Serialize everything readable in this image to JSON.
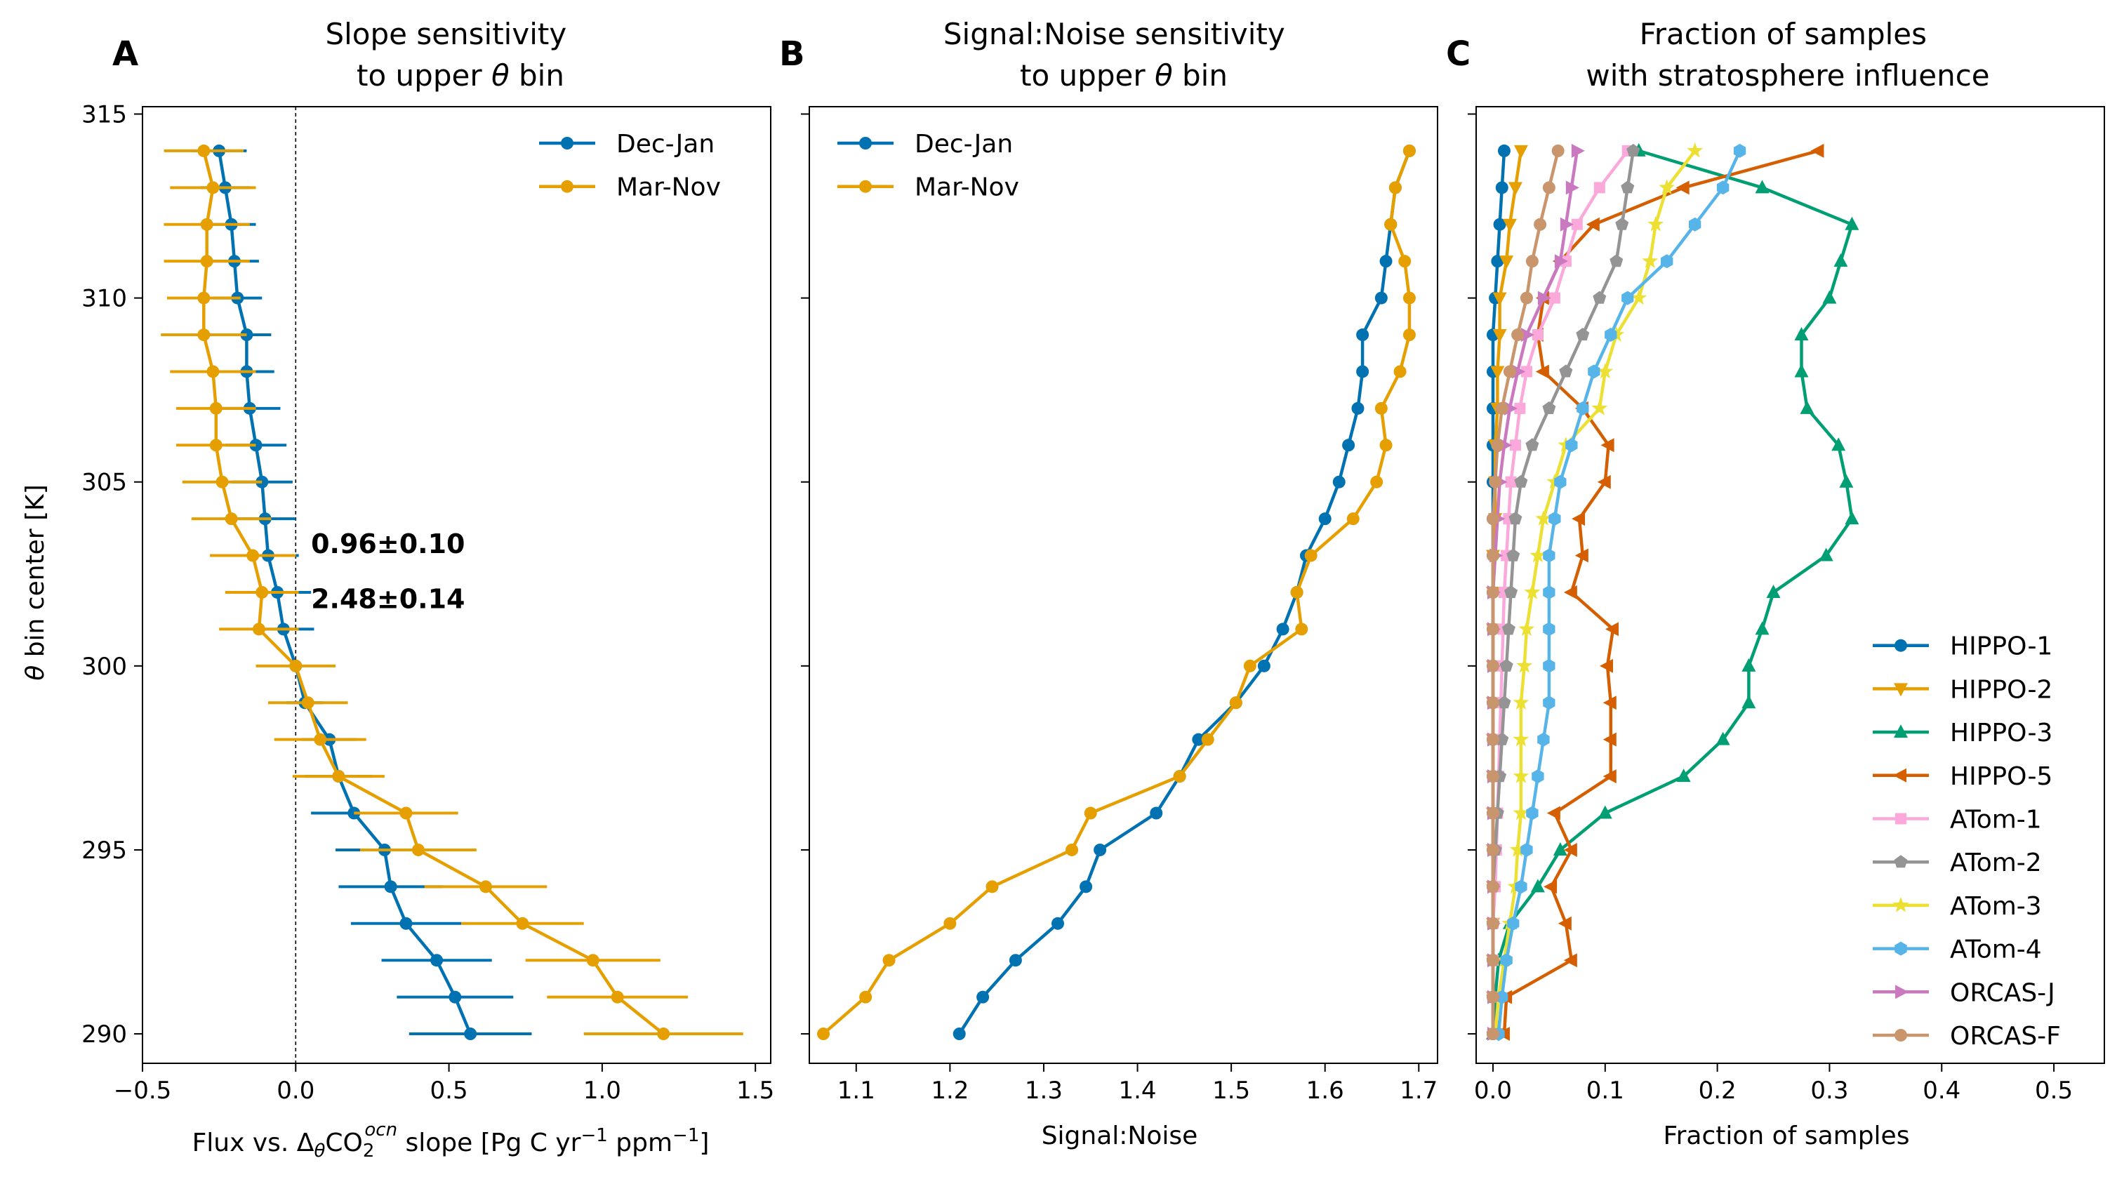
{
  "colors": {
    "Dec-Jan": "#0072b2",
    "Mar-Nov": "#e69f00",
    "HIPPO-1": "#0072b2",
    "HIPPO-2": "#e69f00",
    "HIPPO-3": "#009e73",
    "HIPPO-5": "#d55e00",
    "ATom-1": "#fba8da",
    "ATom-2": "#949494",
    "ATom-3": "#ece133",
    "ATom-4": "#56b4e9",
    "ORCAS-J": "#ca78c0",
    "ORCAS-F": "#c8956c"
  },
  "chart_data": [
    {
      "panel_letter": "A",
      "type": "line",
      "title": "Slope sensitivity\nto upper θ bin",
      "xlabel": "Flux vs. ΔθCO2ocn slope [Pg C yr⁻¹ ppm⁻¹]",
      "ylabel": "θ bin center [K]",
      "xlim": [
        -0.5,
        1.55
      ],
      "ylim": [
        289.2,
        315.2
      ],
      "xticks": [
        -0.5,
        0.0,
        0.5,
        1.0,
        1.5
      ],
      "xtick_labels": [
        "−0.5",
        "0.0",
        "0.5",
        "1.0",
        "1.5"
      ],
      "yticks": [
        290,
        295,
        300,
        305,
        310,
        315
      ],
      "ytick_labels": [
        "290",
        "295",
        "300",
        "305",
        "310",
        "315"
      ],
      "legend_position": "top-right",
      "reference_line": {
        "x": 0,
        "style": "dashed"
      },
      "annotations": [
        {
          "text": "0.96±0.10",
          "series": "Dec-Jan"
        },
        {
          "text": "2.48±0.14",
          "series": "Mar-Nov"
        }
      ],
      "y": [
        290,
        291,
        292,
        293,
        294,
        295,
        296,
        297,
        298,
        299,
        300,
        301,
        302,
        303,
        304,
        305,
        306,
        307,
        308,
        309,
        310,
        311,
        312,
        313,
        314
      ],
      "series": [
        {
          "name": "Dec-Jan",
          "x": [
            0.57,
            0.52,
            0.46,
            0.36,
            0.31,
            0.29,
            0.19,
            0.14,
            0.11,
            0.03,
            0.0,
            -0.04,
            -0.06,
            -0.09,
            -0.1,
            -0.11,
            -0.13,
            -0.15,
            -0.16,
            -0.16,
            -0.19,
            -0.2,
            -0.21,
            -0.23,
            -0.25
          ],
          "err": [
            0.2,
            0.19,
            0.18,
            0.18,
            0.17,
            0.16,
            0.14,
            0.11,
            0.09,
            0.06,
            0.0,
            0.1,
            0.11,
            0.1,
            0.1,
            0.1,
            0.1,
            0.1,
            0.09,
            0.08,
            0.08,
            0.08,
            0.08,
            0.08,
            0.09
          ]
        },
        {
          "name": "Mar-Nov",
          "x": [
            1.2,
            1.05,
            0.97,
            0.74,
            0.62,
            0.4,
            0.36,
            0.14,
            0.08,
            0.04,
            0.0,
            -0.12,
            -0.11,
            -0.14,
            -0.21,
            -0.24,
            -0.26,
            -0.26,
            -0.27,
            -0.3,
            -0.3,
            -0.29,
            -0.29,
            -0.27,
            -0.3
          ],
          "err": [
            0.26,
            0.23,
            0.22,
            0.2,
            0.2,
            0.19,
            0.17,
            0.15,
            0.15,
            0.13,
            0.13,
            0.13,
            0.12,
            0.14,
            0.13,
            0.13,
            0.13,
            0.13,
            0.14,
            0.14,
            0.12,
            0.14,
            0.14,
            0.14,
            0.13
          ]
        }
      ]
    },
    {
      "panel_letter": "B",
      "type": "line",
      "title": "Signal:Noise sensitivity\nto upper θ bin",
      "xlabel": "Signal:Noise",
      "xlim": [
        1.05,
        1.72
      ],
      "ylim": [
        289.2,
        315.2
      ],
      "xticks": [
        1.1,
        1.2,
        1.3,
        1.4,
        1.5,
        1.6,
        1.7
      ],
      "xtick_labels": [
        "1.1",
        "1.2",
        "1.3",
        "1.4",
        "1.5",
        "1.6",
        "1.7"
      ],
      "yticks": [
        290,
        295,
        300,
        305,
        310,
        315
      ],
      "legend_position": "top-left",
      "y": [
        290,
        291,
        292,
        293,
        294,
        295,
        296,
        297,
        298,
        299,
        300,
        301,
        302,
        303,
        304,
        305,
        306,
        307,
        308,
        309,
        310,
        311,
        312,
        313,
        314
      ],
      "series": [
        {
          "name": "Dec-Jan",
          "x": [
            1.21,
            1.235,
            1.27,
            1.315,
            1.345,
            1.36,
            1.42,
            1.445,
            1.465,
            1.505,
            1.535,
            1.555,
            1.57,
            1.58,
            1.6,
            1.615,
            1.625,
            1.635,
            1.64,
            1.64,
            1.66,
            1.665,
            1.67,
            1.675,
            1.69
          ]
        },
        {
          "name": "Mar-Nov",
          "x": [
            1.065,
            1.11,
            1.135,
            1.2,
            1.245,
            1.33,
            1.35,
            1.445,
            1.475,
            1.505,
            1.52,
            1.575,
            1.57,
            1.585,
            1.63,
            1.655,
            1.665,
            1.66,
            1.68,
            1.69,
            1.69,
            1.685,
            1.67,
            1.675,
            1.69
          ]
        }
      ]
    },
    {
      "panel_letter": "C",
      "type": "line",
      "title": "Fraction of samples\nwith stratosphere influence",
      "xlabel": "Fraction of samples",
      "xlim": [
        -0.015,
        0.545
      ],
      "ylim": [
        289.2,
        315.2
      ],
      "xticks": [
        0.0,
        0.1,
        0.2,
        0.3,
        0.4,
        0.5
      ],
      "xtick_labels": [
        "0.0",
        "0.1",
        "0.2",
        "0.3",
        "0.4",
        "0.5"
      ],
      "yticks": [
        290,
        295,
        300,
        305,
        310,
        315
      ],
      "legend_position": "lower-right",
      "y": [
        290,
        291,
        292,
        293,
        294,
        295,
        296,
        297,
        298,
        299,
        300,
        301,
        302,
        303,
        304,
        305,
        306,
        307,
        308,
        309,
        310,
        311,
        312,
        313,
        314
      ],
      "series": [
        {
          "name": "HIPPO-1",
          "marker": "circle",
          "x": [
            0.0,
            0.0,
            0.0,
            0.0,
            0.0,
            0.0,
            0.0,
            0.0,
            0.0,
            0.0,
            0.0,
            0.0,
            0.0,
            0.0,
            0.0,
            0.0,
            0.0,
            0.0,
            0.0,
            0.0,
            0.002,
            0.004,
            0.006,
            0.008,
            0.01
          ]
        },
        {
          "name": "HIPPO-2",
          "marker": "tri-down",
          "x": [
            0.005,
            0.0,
            0.0,
            0.0,
            0.0,
            0.0,
            0.0,
            0.0,
            0.0,
            0.0,
            0.0,
            0.0,
            0.0,
            0.0,
            0.002,
            0.002,
            0.002,
            0.004,
            0.004,
            0.006,
            0.006,
            0.012,
            0.015,
            0.02,
            0.025
          ]
        },
        {
          "name": "HIPPO-3",
          "marker": "tri-up",
          "x": [
            0.0,
            0.002,
            0.005,
            0.015,
            0.04,
            0.06,
            0.1,
            0.17,
            0.205,
            0.228,
            0.228,
            0.24,
            0.25,
            0.297,
            0.32,
            0.315,
            0.308,
            0.28,
            0.275,
            0.275,
            0.3,
            0.31,
            0.32,
            0.24,
            0.13
          ]
        },
        {
          "name": "HIPPO-5",
          "marker": "tri-left",
          "x": [
            0.01,
            0.012,
            0.07,
            0.065,
            0.052,
            0.07,
            0.055,
            0.105,
            0.105,
            0.105,
            0.102,
            0.107,
            0.07,
            0.08,
            0.077,
            0.1,
            0.103,
            0.08,
            0.045,
            0.04,
            0.045,
            0.06,
            0.09,
            0.17,
            0.29
          ]
        },
        {
          "name": "ATom-1",
          "marker": "square",
          "x": [
            0.0,
            0.0,
            0.0,
            0.0,
            0.002,
            0.003,
            0.004,
            0.005,
            0.006,
            0.007,
            0.008,
            0.009,
            0.01,
            0.012,
            0.014,
            0.016,
            0.02,
            0.024,
            0.03,
            0.04,
            0.055,
            0.065,
            0.075,
            0.095,
            0.12
          ]
        },
        {
          "name": "ATom-2",
          "marker": "pentagon",
          "x": [
            0.0,
            0.0,
            0.0,
            0.0,
            0.0,
            0.002,
            0.004,
            0.006,
            0.008,
            0.01,
            0.012,
            0.014,
            0.016,
            0.018,
            0.02,
            0.025,
            0.035,
            0.05,
            0.065,
            0.08,
            0.095,
            0.11,
            0.115,
            0.12,
            0.125
          ]
        },
        {
          "name": "ATom-3",
          "marker": "star",
          "x": [
            0.002,
            0.005,
            0.01,
            0.015,
            0.02,
            0.022,
            0.025,
            0.025,
            0.025,
            0.025,
            0.028,
            0.03,
            0.035,
            0.04,
            0.045,
            0.055,
            0.065,
            0.095,
            0.1,
            0.11,
            0.13,
            0.14,
            0.145,
            0.155,
            0.18
          ]
        },
        {
          "name": "ATom-4",
          "marker": "hexagon",
          "x": [
            0.005,
            0.008,
            0.012,
            0.018,
            0.025,
            0.03,
            0.035,
            0.04,
            0.045,
            0.05,
            0.05,
            0.05,
            0.05,
            0.05,
            0.055,
            0.06,
            0.07,
            0.08,
            0.09,
            0.105,
            0.12,
            0.155,
            0.18,
            0.205,
            0.22
          ]
        },
        {
          "name": "ORCAS-J",
          "marker": "tri-right",
          "x": [
            0.0,
            0.0,
            0.0,
            0.0,
            0.0,
            0.0,
            0.0,
            0.0,
            0.0,
            0.0,
            0.0,
            0.0,
            0.0,
            0.002,
            0.004,
            0.006,
            0.01,
            0.015,
            0.022,
            0.03,
            0.045,
            0.06,
            0.065,
            0.07,
            0.075
          ]
        },
        {
          "name": "ORCAS-F",
          "marker": "circle",
          "x": [
            0.0,
            0.0,
            0.0,
            0.0,
            0.0,
            0.0,
            0.0,
            0.0,
            0.0,
            0.0,
            0.0,
            0.0,
            0.0,
            0.0,
            0.0,
            0.002,
            0.004,
            0.008,
            0.015,
            0.022,
            0.03,
            0.035,
            0.042,
            0.05,
            0.058
          ]
        }
      ]
    }
  ]
}
